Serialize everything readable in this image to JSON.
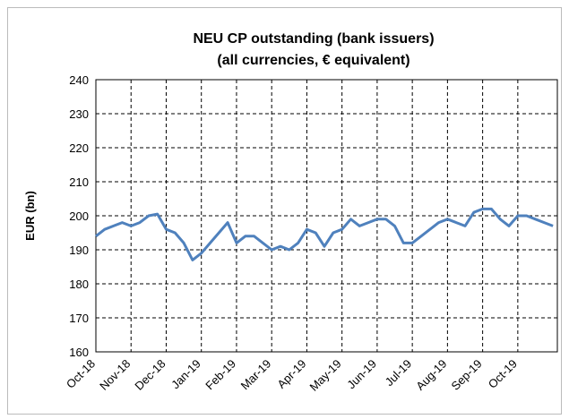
{
  "chart_data": {
    "type": "line",
    "title": [
      "NEU CP outstanding (bank issuers)",
      "(all currencies, € equivalent)"
    ],
    "y_label": "EUR (bn)",
    "categories": [
      "Oct-18",
      null,
      null,
      null,
      "Nov-18",
      null,
      null,
      null,
      "Dec-18",
      null,
      null,
      null,
      "Jan-19",
      null,
      null,
      null,
      "Feb-19",
      null,
      null,
      null,
      "Mar-19",
      null,
      null,
      null,
      "Apr-19",
      null,
      null,
      null,
      "May-19",
      null,
      null,
      null,
      "Jun-19",
      null,
      null,
      null,
      "Jul-19",
      null,
      null,
      null,
      "Aug-19",
      null,
      null,
      null,
      "Sep-19",
      null,
      null,
      null,
      "Oct-19",
      null,
      null,
      null,
      null
    ],
    "values": [
      194,
      196,
      197,
      198,
      197,
      198,
      200,
      200.5,
      196,
      195,
      192,
      187,
      189,
      192,
      195,
      198,
      192,
      194,
      194,
      192,
      190,
      191,
      190,
      192,
      196,
      195,
      191,
      195,
      196,
      199,
      197,
      198,
      199,
      199,
      197,
      192,
      192,
      194,
      196,
      198,
      199,
      198,
      197,
      201,
      202,
      202,
      199,
      197,
      200,
      200,
      199,
      198,
      197
    ],
    "color": "#4f81bd",
    "ylim": [
      160,
      240
    ],
    "yticks": [
      160,
      170,
      180,
      190,
      200,
      210,
      220,
      230,
      240
    ],
    "grid": true
  }
}
